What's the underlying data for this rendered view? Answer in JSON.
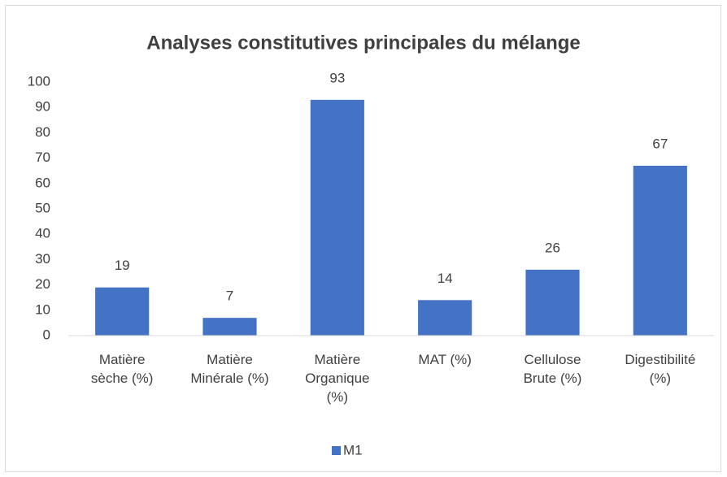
{
  "chart_data": {
    "type": "bar",
    "title": "Analyses constitutives principales du mélange",
    "categories": [
      "Matière sèche (%)",
      "Matière Minérale (%)",
      "Matière Organique (%)",
      "MAT (%)",
      "Cellulose Brute (%)",
      "Digestibilité (%)"
    ],
    "series": [
      {
        "name": "M1",
        "color": "#4472c4",
        "values": [
          19,
          7,
          93,
          14,
          26,
          67
        ]
      }
    ],
    "ylim": [
      0,
      100
    ],
    "yticks": [
      0,
      10,
      20,
      30,
      40,
      50,
      60,
      70,
      80,
      90,
      100
    ],
    "grid": false,
    "legend": "bottom"
  }
}
